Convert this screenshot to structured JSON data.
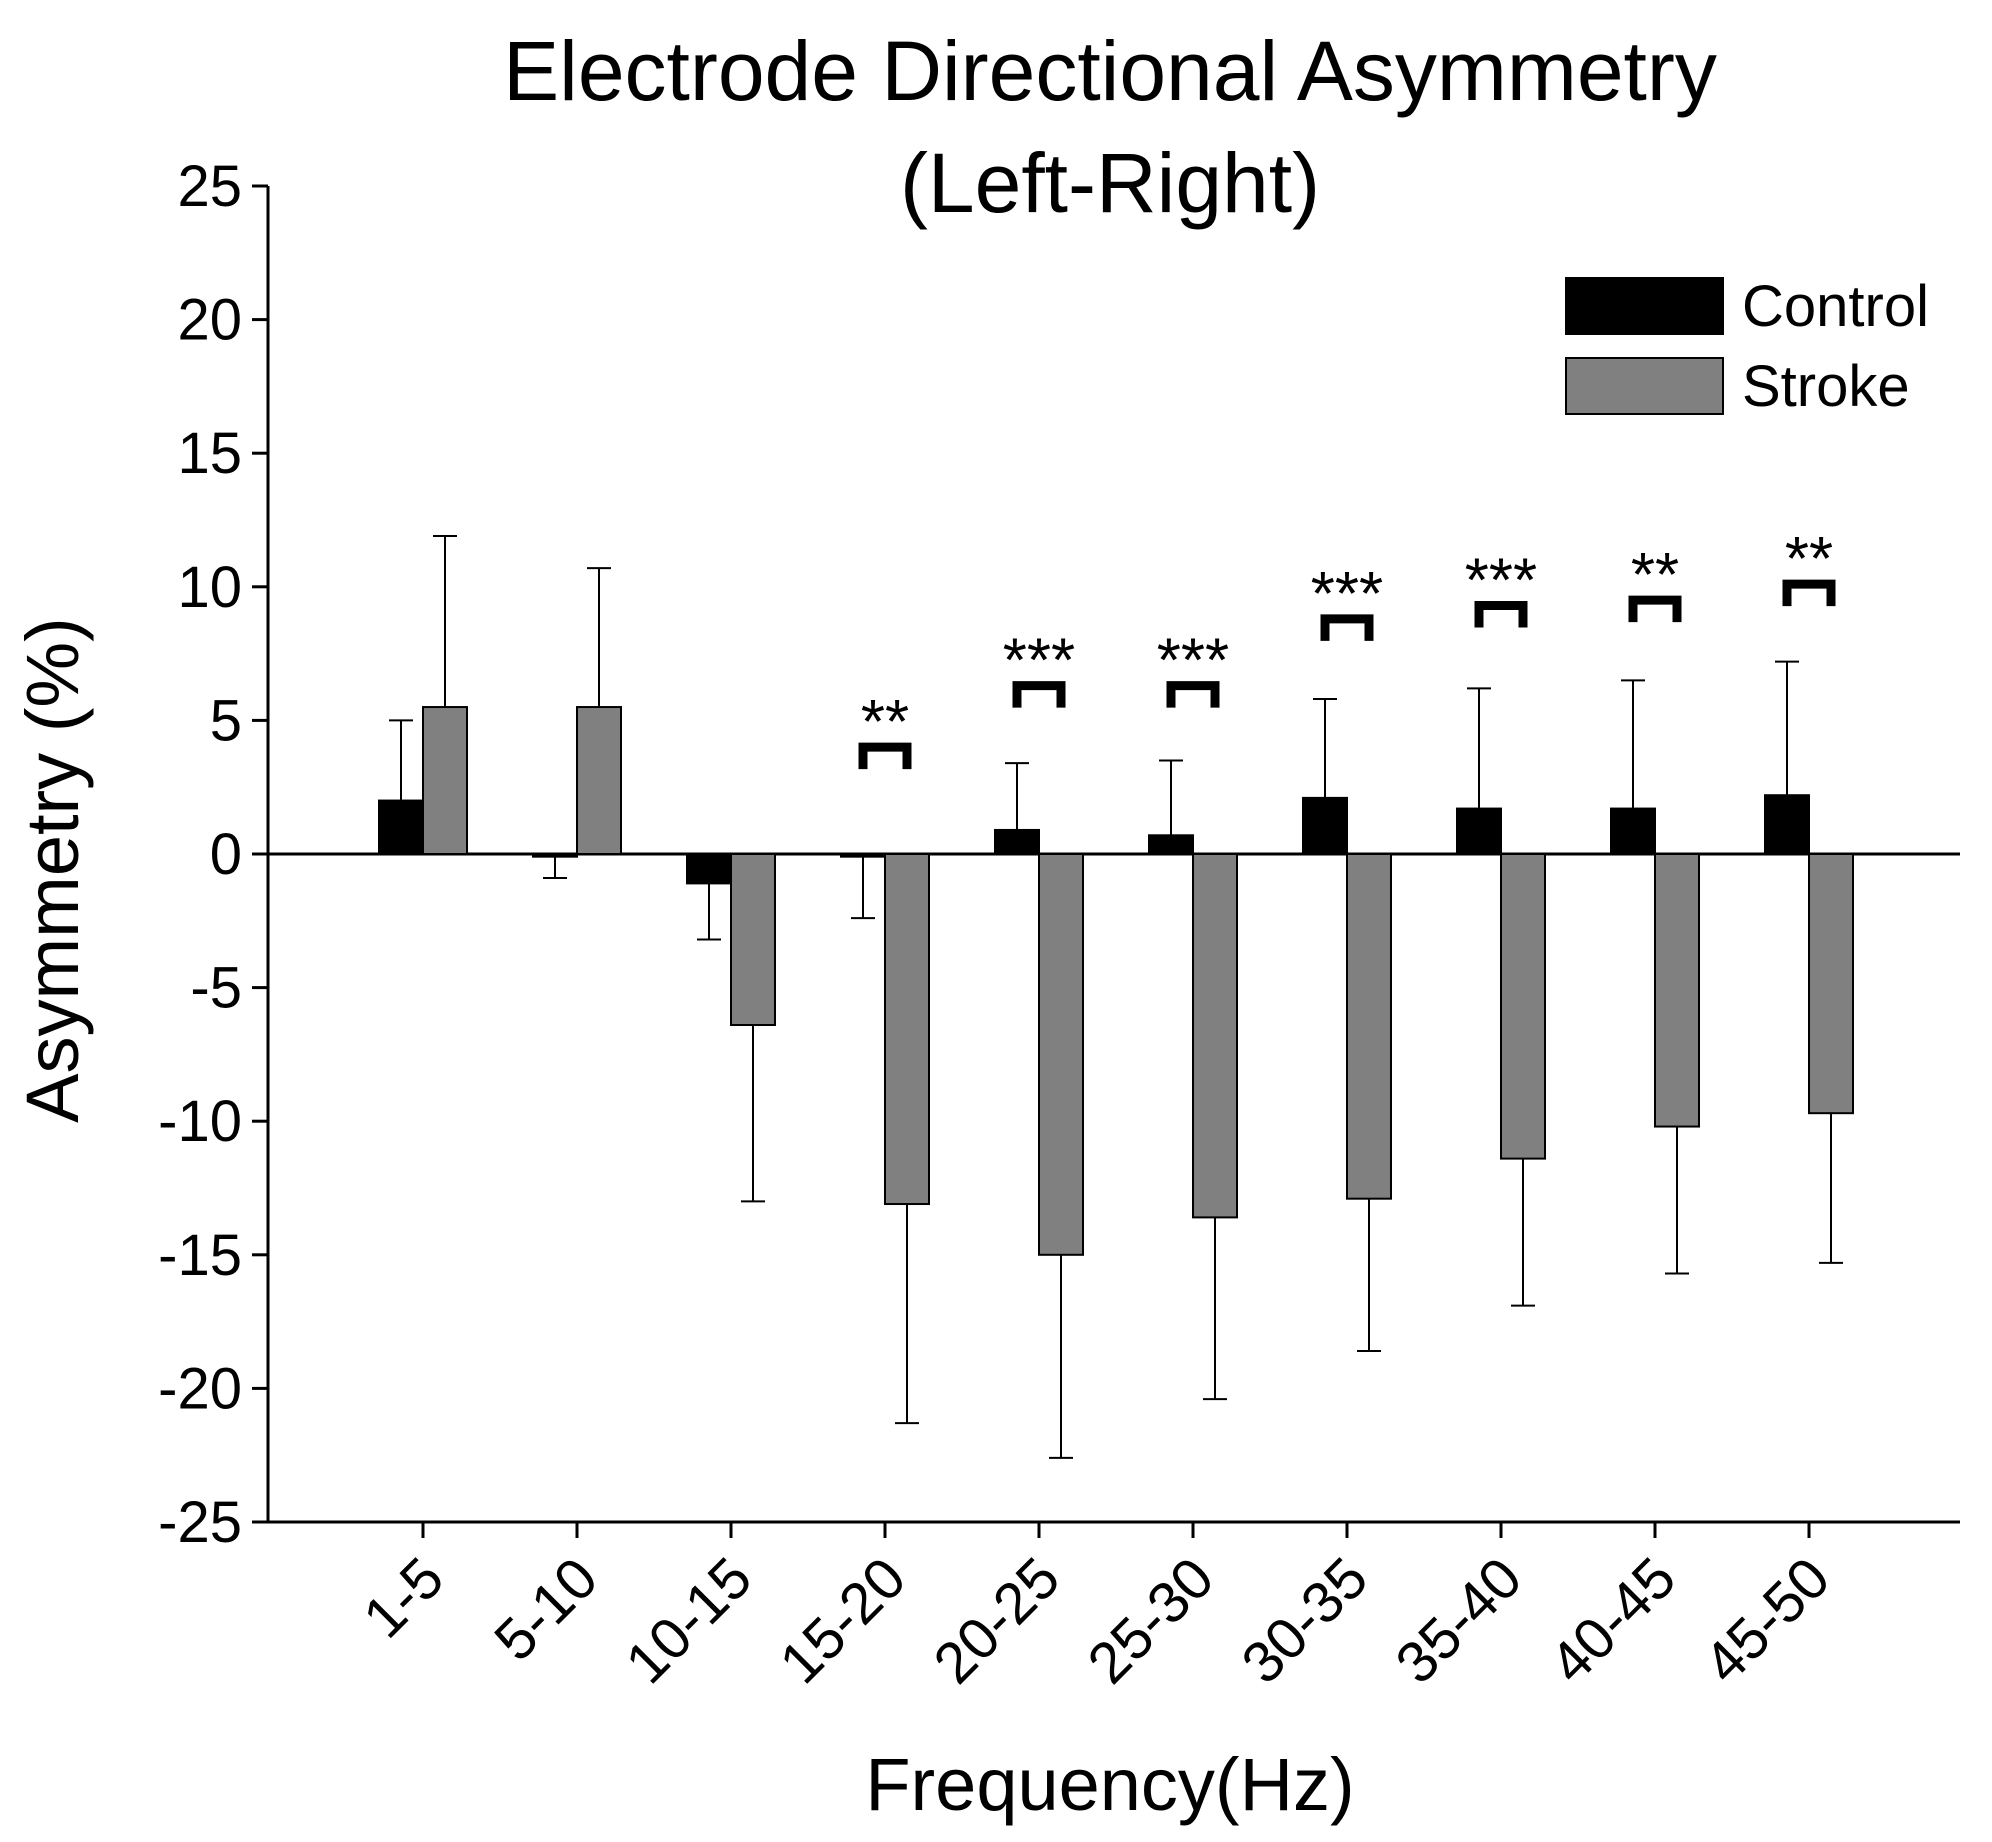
{
  "chart_data": {
    "type": "bar",
    "title": "Electrode Directional Asymmetry",
    "subtitle": "(Left-Right)",
    "xlabel": "Frequency(Hz)",
    "ylabel": "Asymmetry (%)",
    "ylim": [
      -25,
      25
    ],
    "yticks": [
      25,
      20,
      15,
      10,
      5,
      0,
      -5,
      -10,
      -15,
      -20,
      -25
    ],
    "categories": [
      "1-5",
      "5-10",
      "10-15",
      "15-20",
      "20-25",
      "25-30",
      "30-35",
      "35-40",
      "40-45",
      "45-50"
    ],
    "legend_position": "top-right",
    "grid": false,
    "series": [
      {
        "name": "Control",
        "color": "#000000",
        "values": [
          2.0,
          -0.1,
          -1.1,
          -0.1,
          0.9,
          0.7,
          2.1,
          1.7,
          1.7,
          2.2
        ],
        "error": [
          3.0,
          0.8,
          2.1,
          2.3,
          2.5,
          2.8,
          3.7,
          4.5,
          4.8,
          5.0
        ]
      },
      {
        "name": "Stroke",
        "color": "#808080",
        "values": [
          5.5,
          5.5,
          -6.4,
          -13.1,
          -15.0,
          -13.6,
          -12.9,
          -11.4,
          -10.2,
          -9.7
        ],
        "error": [
          6.4,
          5.2,
          6.6,
          8.2,
          7.6,
          6.8,
          5.7,
          5.5,
          5.5,
          5.6
        ]
      }
    ],
    "significance": [
      {
        "category": "15-20",
        "label": "**",
        "y": 4.0
      },
      {
        "category": "20-25",
        "label": "***",
        "y": 6.3
      },
      {
        "category": "25-30",
        "label": "***",
        "y": 6.3
      },
      {
        "category": "30-35",
        "label": "***",
        "y": 8.8
      },
      {
        "category": "35-40",
        "label": "***",
        "y": 9.3
      },
      {
        "category": "40-45",
        "label": "**",
        "y": 9.5
      },
      {
        "category": "45-50",
        "label": "**",
        "y": 10.1
      }
    ]
  }
}
